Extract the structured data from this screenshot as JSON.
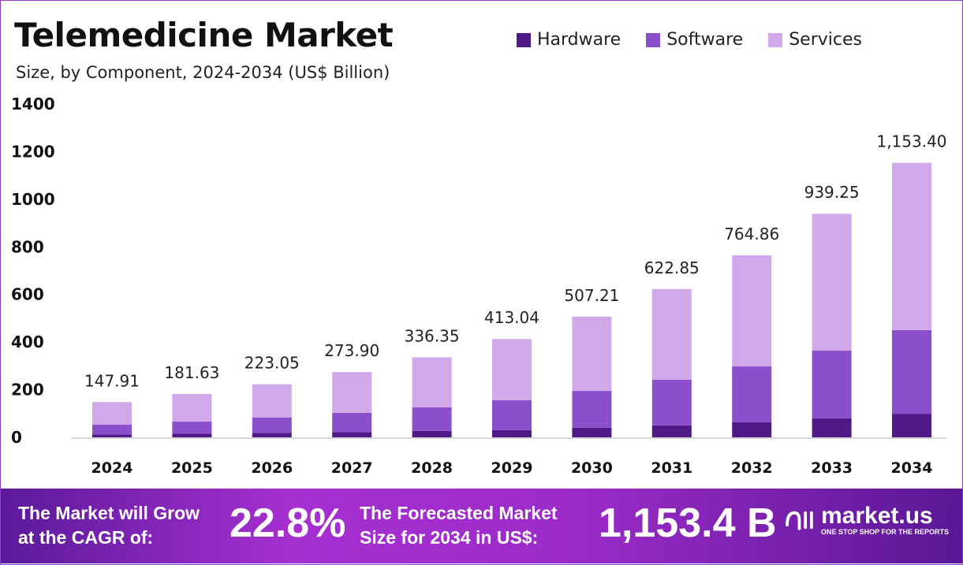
{
  "header": {
    "title": "Telemedicine Market",
    "subtitle": "Size, by Component, 2024-2034 (US$ Billion)"
  },
  "chart_data": {
    "type": "bar",
    "stacked": true,
    "title": "Telemedicine Market",
    "subtitle": "Size, by Component, 2024-2034 (US$ Billion)",
    "categories": [
      "2024",
      "2025",
      "2026",
      "2027",
      "2028",
      "2029",
      "2030",
      "2031",
      "2032",
      "2033",
      "2034"
    ],
    "series": [
      {
        "name": "Hardware",
        "color": "#4f1a87",
        "values": [
          12,
          15,
          18,
          22,
          27,
          30,
          40,
          50,
          63,
          80,
          99
        ]
      },
      {
        "name": "Software",
        "color": "#8b4fcb",
        "values": [
          41,
          51,
          65,
          81,
          99,
          126,
          155,
          192,
          235,
          284,
          351
        ]
      },
      {
        "name": "Services",
        "color": "#d1a8ea",
        "values": [
          95,
          116,
          140,
          171,
          210,
          257,
          312,
          381,
          467,
          575,
          703
        ]
      }
    ],
    "totals": [
      "147.91",
      "181.63",
      "223.05",
      "273.90",
      "336.35",
      "413.04",
      "507.21",
      "622.85",
      "764.86",
      "939.25",
      "1,153.40"
    ],
    "yticks": [
      "0",
      "200",
      "400",
      "600",
      "800",
      "1000",
      "1200",
      "1400"
    ],
    "ylim": [
      0,
      1400
    ],
    "grid": false,
    "legend": "top-right"
  },
  "footer": {
    "cagr_label_1": "The Market will Grow",
    "cagr_label_2": "at the CAGR of:",
    "cagr_value": "22.8%",
    "forecast_label_1": "The Forecasted Market",
    "forecast_label_2": "Size for 2034 in US$:",
    "forecast_value": "1,153.4 B",
    "logo_text": "market.us",
    "logo_tagline": "ONE STOP SHOP FOR THE REPORTS"
  }
}
